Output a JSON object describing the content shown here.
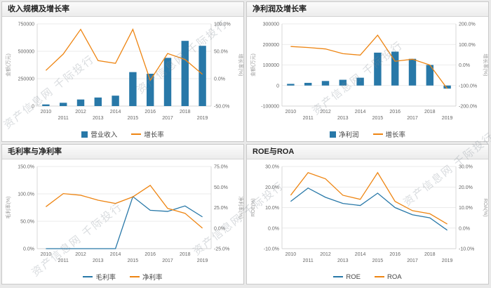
{
  "page": {
    "watermark": "资产信息网 千际投行"
  },
  "chart_data": [
    {
      "type": "bar",
      "title": "收入规模及增长率",
      "categories": [
        "2010",
        "2011",
        "2012",
        "2013",
        "2014",
        "2015",
        "2016",
        "2017",
        "2018",
        "2019"
      ],
      "legend_position": "bottom",
      "grid": true,
      "left_axis": {
        "label": "金额(万元)",
        "min": 0,
        "max": 750000,
        "tick_values": [
          0,
          250000,
          500000,
          750000
        ],
        "ticks": [
          "0",
          "250000",
          "500000",
          "750000"
        ]
      },
      "right_axis": {
        "label": "增长率(%)",
        "min": -50,
        "max": 100,
        "tick_values": [
          -50,
          0,
          50,
          100
        ],
        "ticks": [
          "-50.0%",
          "0.0%",
          "50.0%",
          "100.0%"
        ]
      },
      "series": [
        {
          "name": "营业收入",
          "type": "bar",
          "axis": "left",
          "color": "#2878a8",
          "values": [
            15000,
            30000,
            60000,
            78000,
            95000,
            310000,
            295000,
            440000,
            595000,
            550000
          ]
        },
        {
          "name": "增长率",
          "type": "line",
          "axis": "right",
          "color": "#ee8512",
          "values": [
            15,
            45,
            90,
            33,
            28,
            90,
            -3,
            46,
            35,
            8
          ]
        }
      ]
    },
    {
      "type": "bar",
      "title": "净利润及增长率",
      "categories": [
        "2010",
        "2011",
        "2012",
        "2013",
        "2014",
        "2015",
        "2016",
        "2017",
        "2018",
        "2019"
      ],
      "legend_position": "bottom",
      "grid": true,
      "left_axis": {
        "label": "金额(万元)",
        "min": -100000,
        "max": 300000,
        "tick_values": [
          -100000,
          0,
          100000,
          200000,
          300000
        ],
        "ticks": [
          "-100000",
          "0",
          "100000",
          "200000",
          "300000"
        ]
      },
      "right_axis": {
        "label": "增长率(%)",
        "min": -200,
        "max": 200,
        "tick_values": [
          -200,
          -100,
          0,
          100,
          200
        ],
        "ticks": [
          "-200.0%",
          "-100.0%",
          "0.0%",
          "100.0%",
          "200.0%"
        ]
      },
      "series": [
        {
          "name": "净利润",
          "type": "bar",
          "axis": "left",
          "color": "#2878a8",
          "values": [
            8000,
            13000,
            22000,
            28000,
            38000,
            160000,
            165000,
            130000,
            100000,
            -15000
          ]
        },
        {
          "name": "增长率",
          "type": "line",
          "axis": "right",
          "color": "#ee8512",
          "values": [
            90,
            85,
            78,
            55,
            48,
            145,
            18,
            28,
            0,
            -115
          ]
        }
      ]
    },
    {
      "type": "line",
      "title": "毛利率与净利率",
      "categories": [
        "2010",
        "2011",
        "2012",
        "2013",
        "2014",
        "2015",
        "2016",
        "2017",
        "2018",
        "2019"
      ],
      "legend_position": "bottom",
      "grid": true,
      "left_axis": {
        "label": "毛利率(%)",
        "min": 0,
        "max": 150,
        "tick_values": [
          0,
          50,
          100,
          150
        ],
        "ticks": [
          "0.0%",
          "50.0%",
          "100.0%",
          "150.0%"
        ]
      },
      "right_axis": {
        "label": "净利率(%)",
        "min": -25,
        "max": 75,
        "tick_values": [
          -25,
          0,
          25,
          50,
          75
        ],
        "ticks": [
          "-25.0%",
          "0.0%",
          "25.0%",
          "50.0%",
          "75.0%"
        ]
      },
      "series": [
        {
          "name": "毛利率",
          "type": "line",
          "axis": "left",
          "color": "#2878a8",
          "values": [
            0,
            0,
            0,
            0,
            0,
            95,
            70,
            68,
            78,
            58
          ]
        },
        {
          "name": "净利率",
          "type": "line",
          "axis": "right",
          "color": "#ee8512",
          "values": [
            26,
            42,
            40,
            34,
            30,
            38,
            52,
            24,
            18,
            0
          ]
        }
      ]
    },
    {
      "type": "line",
      "title": "ROE与ROA",
      "categories": [
        "2010",
        "2011",
        "2012",
        "2013",
        "2014",
        "2015",
        "2016",
        "2017",
        "2018",
        "2019"
      ],
      "legend_position": "bottom",
      "grid": true,
      "left_axis": {
        "label": "ROE(%)",
        "min": -10,
        "max": 30,
        "tick_values": [
          -10,
          0,
          10,
          20,
          30
        ],
        "ticks": [
          "-10.0%",
          "0.0%",
          "10.0%",
          "20.0%",
          "30.0%"
        ]
      },
      "right_axis": {
        "label": "ROA(%)",
        "min": -10,
        "max": 30,
        "tick_values": [
          -10,
          0,
          10,
          20,
          30
        ],
        "ticks": [
          "-10.0%",
          "0.0%",
          "10.0%",
          "20.0%",
          "30.0%"
        ]
      },
      "series": [
        {
          "name": "ROE",
          "type": "line",
          "axis": "left",
          "color": "#2878a8",
          "values": [
            13,
            19.5,
            15,
            12,
            11,
            17,
            10,
            6.5,
            5,
            -1
          ]
        },
        {
          "name": "ROA",
          "type": "line",
          "axis": "right",
          "color": "#ee8512",
          "values": [
            16,
            27,
            24,
            16,
            14,
            27,
            13,
            8.5,
            7,
            2
          ]
        }
      ]
    }
  ]
}
